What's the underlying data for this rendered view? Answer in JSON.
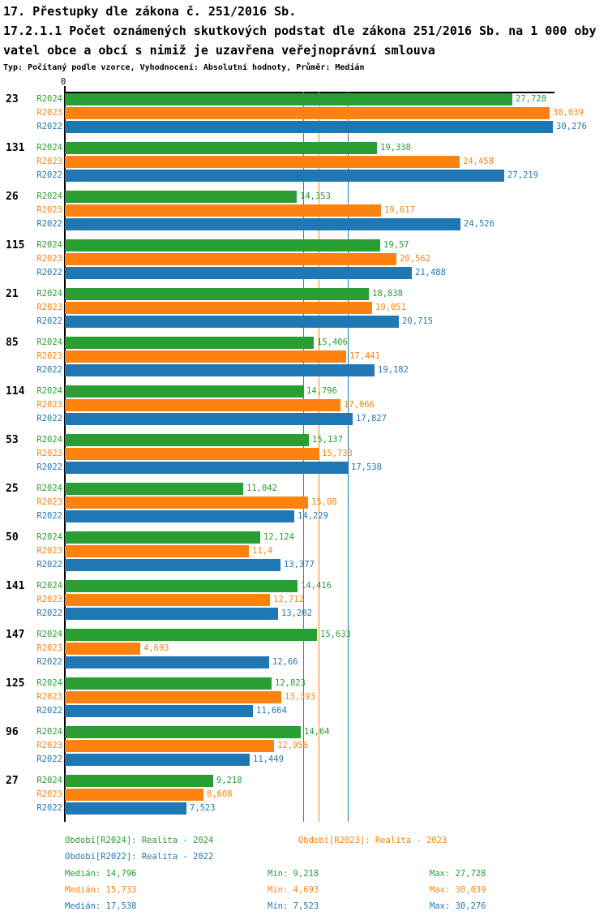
{
  "title": {
    "line1": "17. Přestupky dle zákona č. 251/2016 Sb.",
    "line2": "17.2.1.1 Počet oznámených skutkových podstat dle zákona 251/2016 Sb. na 1 000 oby",
    "line3": "vatel obce a obcí s nimiž je uzavřena veřejnoprávní smlouva",
    "meta": "Typ: Počítaný podle vzorce, Vyhodnocení: Absolutní hodnoty, Průměr: Medián"
  },
  "axis": {
    "origin_label": "0"
  },
  "colors": {
    "r2024": "#2a9e32",
    "r2023": "#ff820e",
    "r2022": "#1f77b4",
    "axis": "#000000"
  },
  "legend": {
    "r2024": "Období[R2024]: Realita - 2024",
    "r2023": "Období[R2023]: Realita - 2023",
    "r2022": "Období[R2022]: Realita - 2022"
  },
  "stats": {
    "r2024": {
      "median": "Medián: 14,796",
      "min": "Min: 9,218",
      "max": "Max: 27,728"
    },
    "r2023": {
      "median": "Medián: 15,733",
      "min": "Min: 4,693",
      "max": "Max: 30,039"
    },
    "r2022": {
      "median": "Medián: 17,538",
      "min": "Min: 7,523",
      "max": "Max: 30,276"
    }
  },
  "chart_data": {
    "type": "bar",
    "orientation": "horizontal",
    "title": "17.2.1.1 Počet oznámených skutkových podstat dle zákona 251/2016 Sb. na 1 000 obyvatel obce a obcí s nimiž je uzavřena veřejnoprávní smlouva",
    "xlim": [
      0,
      30.276
    ],
    "grid": false,
    "legend_position": "bottom",
    "categories": [
      "23",
      "131",
      "26",
      "115",
      "21",
      "85",
      "114",
      "53",
      "25",
      "50",
      "141",
      "147",
      "125",
      "96",
      "27"
    ],
    "series": [
      {
        "name": "R2024",
        "legend": "Období[R2024]: Realita - 2024",
        "color": "#2a9e32",
        "values": [
          27.728,
          19.338,
          14.353,
          19.57,
          18.838,
          15.406,
          14.796,
          15.137,
          11.042,
          12.124,
          14.416,
          15.633,
          12.823,
          14.64,
          9.218
        ],
        "labels": [
          "27,728",
          "19,338",
          "14,353",
          "19,57",
          "18,838",
          "15,406",
          "14,796",
          "15,137",
          "11,042",
          "12,124",
          "14,416",
          "15,633",
          "12,823",
          "14,64",
          "9,218"
        ],
        "median": 14.796,
        "min": 9.218,
        "max": 27.728
      },
      {
        "name": "R2023",
        "legend": "Období[R2023]: Realita - 2023",
        "color": "#ff820e",
        "values": [
          30.039,
          24.458,
          19.617,
          20.562,
          19.051,
          17.441,
          17.066,
          15.733,
          15.08,
          11.4,
          12.712,
          4.693,
          13.393,
          12.956,
          8.608
        ],
        "labels": [
          "30,039",
          "24,458",
          "19,617",
          "20,562",
          "19,051",
          "17,441",
          "17,066",
          "15,733",
          "15,08",
          "11,4",
          "12,712",
          "4,693",
          "13,393",
          "12,956",
          "8,608"
        ],
        "median": 15.733,
        "min": 4.693,
        "max": 30.039
      },
      {
        "name": "R2022",
        "legend": "Období[R2022]: Realita - 2022",
        "color": "#1f77b4",
        "values": [
          30.276,
          27.219,
          24.526,
          21.488,
          20.715,
          19.182,
          17.827,
          17.538,
          14.229,
          13.377,
          13.202,
          12.66,
          11.664,
          11.449,
          7.523
        ],
        "labels": [
          "30,276",
          "27,219",
          "24,526",
          "21,488",
          "20,715",
          "19,182",
          "17,827",
          "17,538",
          "14,229",
          "13,377",
          "13,202",
          "12,66",
          "11,664",
          "11,449",
          "7,523"
        ],
        "median": 17.538,
        "min": 7.523,
        "max": 30.276
      }
    ],
    "median_lines": [
      {
        "series": "R2024",
        "value": 14.796,
        "color": "#2a9e32"
      },
      {
        "series": "R2023",
        "value": 15.733,
        "color": "#ff820e"
      },
      {
        "series": "R2022",
        "value": 17.538,
        "color": "#1f77b4"
      }
    ]
  }
}
